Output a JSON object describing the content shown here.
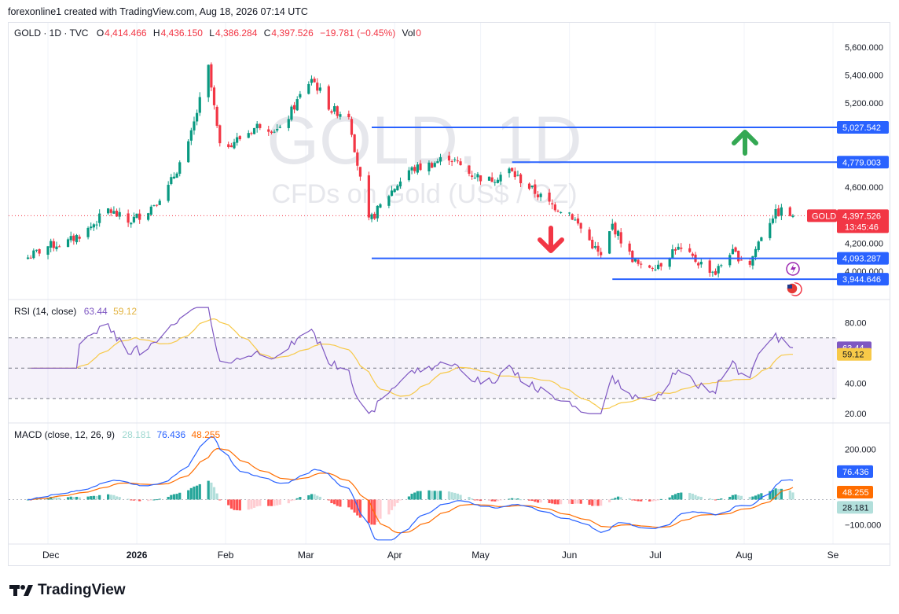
{
  "header": {
    "title": "forexonline1 created with TradingView.com, Aug 18, 2026 07:14 UTC"
  },
  "ohlc": {
    "symbol": "GOLD · 1D · TVC",
    "o_label": "O",
    "o": "4,414.466",
    "h_label": "H",
    "h": "4,436.150",
    "l_label": "L",
    "l": "4,386.284",
    "c_label": "C",
    "c": "4,397.526",
    "change": "−19.781 (−0.45%)",
    "vol_label": "Vol",
    "vol": "0"
  },
  "watermark": {
    "main": "GOLD, 1D",
    "sub": "CFDs on Gold (US$ / OZ)"
  },
  "colors": {
    "up": "#089981",
    "down": "#f23645",
    "line": "#2962ff",
    "rsi": "#7e57c2",
    "rsi_ma": "#f7c948",
    "macd_signal": "#ff6d00",
    "arrow_up": "#34a853",
    "arrow_down": "#f23645"
  },
  "chart_data": [
    {
      "type": "candlestick",
      "title": "GOLD, 1D",
      "x_axis_labels": [
        "Dec",
        "2026",
        "Feb",
        "Mar",
        "Apr",
        "May",
        "Jun",
        "Jul",
        "Aug",
        "Se"
      ],
      "y_ticks": [
        "5,600.000",
        "5,400.000",
        "5,200.000",
        "4,600.000",
        "4,200.000",
        "4,000.000"
      ],
      "ylim": [
        3850,
        5700
      ],
      "close_path": [
        {
          "d": "2025-11-24",
          "v": 4100
        },
        {
          "d": "2025-12-01",
          "v": 4180
        },
        {
          "d": "2025-12-08",
          "v": 4210
        },
        {
          "d": "2025-12-15",
          "v": 4300
        },
        {
          "d": "2025-12-22",
          "v": 4440
        },
        {
          "d": "2025-12-29",
          "v": 4350
        },
        {
          "d": "2026-01-05",
          "v": 4440
        },
        {
          "d": "2026-01-12",
          "v": 4600
        },
        {
          "d": "2026-01-19",
          "v": 4900
        },
        {
          "d": "2026-01-26",
          "v": 5450
        },
        {
          "d": "2026-01-30",
          "v": 4880
        },
        {
          "d": "2026-02-06",
          "v": 4950
        },
        {
          "d": "2026-02-13",
          "v": 5050
        },
        {
          "d": "2026-02-20",
          "v": 5000
        },
        {
          "d": "2026-02-27",
          "v": 5250
        },
        {
          "d": "2026-03-03",
          "v": 5380
        },
        {
          "d": "2026-03-10",
          "v": 5150
        },
        {
          "d": "2026-03-16",
          "v": 5120
        },
        {
          "d": "2026-03-20",
          "v": 4650
        },
        {
          "d": "2026-03-23",
          "v": 4350
        },
        {
          "d": "2026-03-30",
          "v": 4550
        },
        {
          "d": "2026-04-06",
          "v": 4720
        },
        {
          "d": "2026-04-13",
          "v": 4760
        },
        {
          "d": "2026-04-20",
          "v": 4820
        },
        {
          "d": "2026-04-27",
          "v": 4700
        },
        {
          "d": "2026-05-04",
          "v": 4650
        },
        {
          "d": "2026-05-11",
          "v": 4720
        },
        {
          "d": "2026-05-18",
          "v": 4600
        },
        {
          "d": "2026-05-25",
          "v": 4480
        },
        {
          "d": "2026-06-01",
          "v": 4420
        },
        {
          "d": "2026-06-08",
          "v": 4220
        },
        {
          "d": "2026-06-12",
          "v": 4100
        },
        {
          "d": "2026-06-16",
          "v": 4330
        },
        {
          "d": "2026-06-22",
          "v": 4120
        },
        {
          "d": "2026-06-26",
          "v": 4020
        },
        {
          "d": "2026-07-03",
          "v": 4060
        },
        {
          "d": "2026-07-08",
          "v": 4170
        },
        {
          "d": "2026-07-15",
          "v": 4080
        },
        {
          "d": "2026-07-22",
          "v": 3990
        },
        {
          "d": "2026-07-27",
          "v": 4140
        },
        {
          "d": "2026-08-03",
          "v": 4060
        },
        {
          "d": "2026-08-07",
          "v": 4260
        },
        {
          "d": "2026-08-11",
          "v": 4400
        },
        {
          "d": "2026-08-14",
          "v": 4430
        },
        {
          "d": "2026-08-18",
          "v": 4397.526
        }
      ],
      "levels": [
        {
          "label": "5,027.542",
          "value": 5027.542
        },
        {
          "label": "4,779.003",
          "value": 4779.003
        },
        {
          "label": "4,093.287",
          "value": 4093.287
        },
        {
          "label": "3,944.646",
          "value": 3944.646
        }
      ],
      "last_price": {
        "tag": "GOLD",
        "label": "4,397.526",
        "countdown": "13:45:46",
        "value": 4397.526
      }
    },
    {
      "type": "line",
      "title": "RSI (14, close)",
      "legend_values": [
        "63.44",
        "59.12"
      ],
      "y_ticks": [
        "80.00",
        "40.00",
        "20.00"
      ],
      "ylim": [
        18,
        88
      ],
      "band": [
        30,
        70
      ],
      "series": [
        {
          "name": "RSI",
          "last_label": "63.44",
          "last": 63.44
        },
        {
          "name": "RSI-based MA",
          "last_label": "59.12",
          "last": 59.12
        }
      ]
    },
    {
      "type": "line",
      "title": "MACD (close, 12, 26, 9)",
      "legend_values": [
        "28.181",
        "76.436",
        "48.255"
      ],
      "y_ticks": [
        "200.000",
        "−100.000"
      ],
      "ylim": [
        -170,
        260
      ],
      "series": [
        {
          "name": "Histogram",
          "last_label": "28.181",
          "last": 28.181
        },
        {
          "name": "MACD",
          "last_label": "76.436",
          "last": 76.436
        },
        {
          "name": "Signal",
          "last_label": "48.255",
          "last": 48.255
        }
      ]
    }
  ],
  "footer": {
    "brand": "TradingView"
  }
}
